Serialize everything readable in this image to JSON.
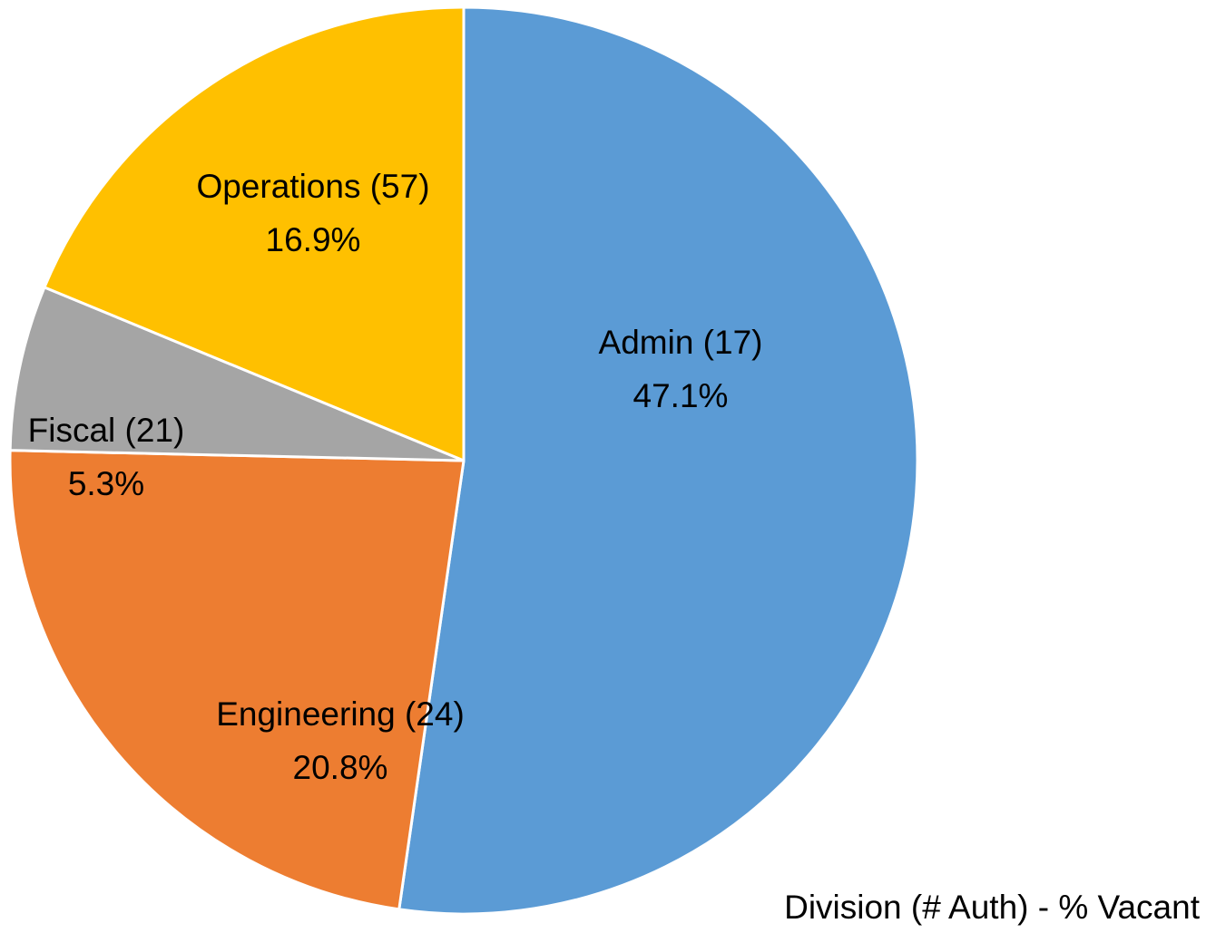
{
  "chart_data": {
    "type": "pie",
    "title": "Division (# Auth) - % Vacant",
    "categories": [
      "Admin (17)",
      "Engineering (24)",
      "Fiscal (21)",
      "Operations (57)"
    ],
    "values": [
      47.1,
      20.8,
      5.3,
      16.9
    ],
    "value_labels": [
      "47.1%",
      "20.8%",
      "5.3%",
      "16.9%"
    ],
    "colors": [
      "#5b9bd5",
      "#ed7d31",
      "#a5a5a5",
      "#ffc000"
    ]
  }
}
